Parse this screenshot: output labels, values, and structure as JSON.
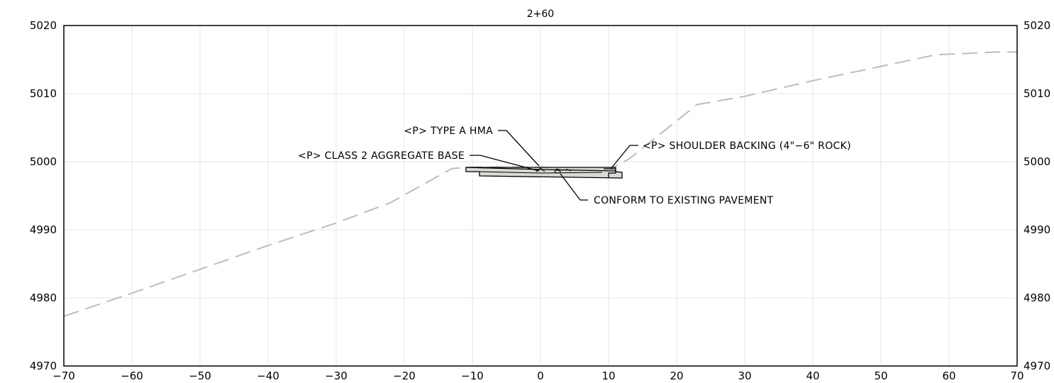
{
  "station": "2+60",
  "x_ticks": [
    "−70",
    "−60",
    "−50",
    "−40",
    "−30",
    "−20",
    "−10",
    "0",
    "10",
    "20",
    "30",
    "40",
    "50",
    "60",
    "70"
  ],
  "y_ticks": [
    "5020",
    "5010",
    "5000",
    "4990",
    "4980",
    "4970"
  ],
  "right_y_ticks": [
    "5020",
    "5010",
    "5000",
    "4990",
    "4980",
    "4970"
  ],
  "labels": {
    "type_a_hma": "<P> TYPE A HMA",
    "class2_base": "<P> CLASS 2 AGGREGATE BASE",
    "shoulder_backing": "<P> SHOULDER BACKING (4\"−6\" ROCK)",
    "conform": "CONFORM TO EXISTING PAVEMENT"
  },
  "chart_data": {
    "type": "line",
    "title": "2+60",
    "xlabel": "",
    "ylabel": "",
    "xlim": [
      -70,
      70
    ],
    "ylim": [
      4970,
      5020
    ],
    "grid": true,
    "series": [
      {
        "style": "dashed",
        "x": [
          -70,
          -60,
          -50,
          -40,
          -30,
          -22,
          -13,
          -10,
          0,
          10,
          13,
          23,
          30,
          40,
          50,
          58,
          67,
          70
        ],
        "y": [
          4977.3,
          4980.7,
          4984.2,
          4987.7,
          4991.0,
          4994.0,
          4999.0,
          4999.2,
          4999.2,
          4998.8,
          5000.4,
          5008.4,
          5009.6,
          5011.9,
          5014.0,
          5015.7,
          5016.1,
          5016.1
        ]
      }
    ],
    "colors": {
      "ground": "#bdbdbd",
      "grid": "#e6e6e6",
      "pavement_fill": "#d9d9d6"
    }
  }
}
